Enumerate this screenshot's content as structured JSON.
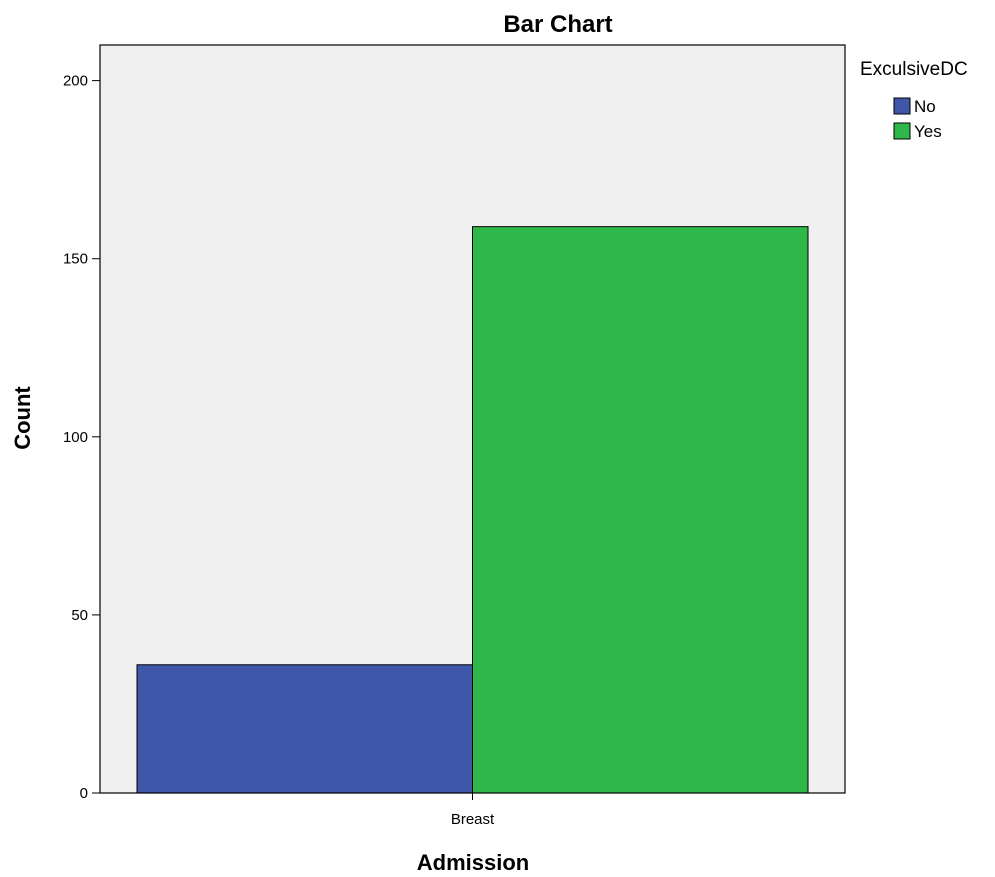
{
  "chart_data": {
    "type": "bar",
    "title": "Bar Chart",
    "xlabel": "Admission",
    "ylabel": "Count",
    "categories": [
      "Breast"
    ],
    "series": [
      {
        "name": "No",
        "values": [
          36
        ],
        "color": "#3f57a8"
      },
      {
        "name": "Yes",
        "values": [
          159
        ],
        "color": "#2fb84a"
      }
    ],
    "ylim": [
      0,
      210
    ],
    "yticks": [
      0,
      50,
      100,
      150,
      200
    ],
    "grid": false,
    "plot_background": "#f0f0f0",
    "legend": {
      "title": "ExculsiveDC",
      "placement": "top-right, outside plot"
    }
  }
}
